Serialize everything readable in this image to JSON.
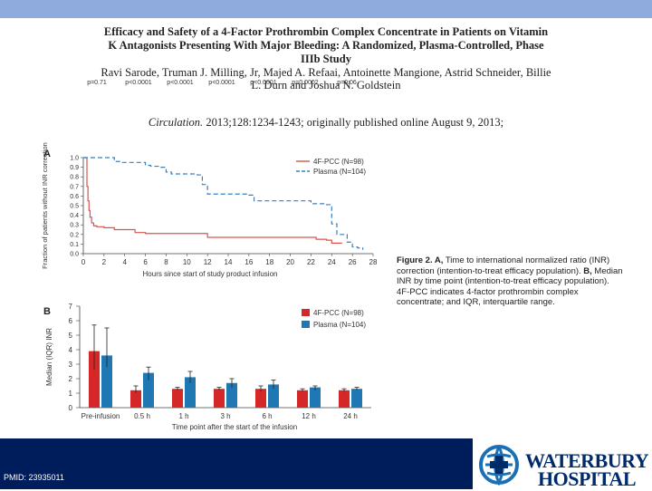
{
  "paper": {
    "title": "Efficacy and Safety of a 4-Factor Prothrombin Complex Concentrate in Patients on Vitamin K Antagonists Presenting With Major Bleeding: A Randomized, Plasma-Controlled, Phase IIIb Study",
    "authors": "Ravi Sarode, Truman J. Milling, Jr, Majed A. Refaai, Antoinette Mangione, Astrid Schneider, Billie L. Durn and Joshua N. Goldstein",
    "journal": "Circulation.",
    "citation_rest": " 2013;128:1234-1243; originally published online August 9, 2013;"
  },
  "caption": {
    "fig": "Figure 2. A,",
    "text": " Time to international normalized ratio (INR) correction (intention-to-treat efficacy population). ",
    "b_label": "B,",
    "text2": " Median INR by time point (intention-to-treat efficacy population). 4F-PCC indicates 4-factor prothrombin complex concentrate; and IQR, interquartile range."
  },
  "footer": {
    "pmid": "PMID: 23935011"
  },
  "logo": {
    "line1": "WATERBURY",
    "line2": "HOSPITAL"
  },
  "colors": {
    "pcc": "#d62728",
    "plasma": "#1f77b4",
    "panelA_pcc": "#d9534f",
    "panelA_plasma": "#3a7fc1"
  },
  "chart_data": [
    {
      "type": "line",
      "panel": "A",
      "ylabel": "Fraction of patients without INR correction",
      "xlabel": "Hours since start of study product infusion",
      "xlim": [
        0,
        28
      ],
      "ylim": [
        0,
        1.0
      ],
      "x_ticks": [
        0,
        2,
        4,
        6,
        8,
        10,
        12,
        14,
        16,
        18,
        20,
        22,
        24,
        26,
        28
      ],
      "y_ticks": [
        "0.0",
        "0.1",
        "0.2",
        "0.3",
        "0.4",
        "0.5",
        "0.6",
        "0.7",
        "0.8",
        "0.9",
        "1.0"
      ],
      "legend_position": "top-right",
      "series": [
        {
          "name": "4F-PCC (N=98)",
          "style": "solid",
          "x": [
            0,
            0.3,
            0.35,
            0.45,
            0.55,
            0.65,
            0.8,
            1.0,
            1.3,
            1.6,
            2.0,
            3.0,
            5.0,
            6.0,
            8.0,
            10.0,
            11.5,
            12.0,
            14.0,
            16.0,
            18.0,
            20.0,
            22.0,
            22.5,
            23.5,
            24.0,
            25.0
          ],
          "y": [
            1.0,
            1.0,
            0.7,
            0.55,
            0.45,
            0.38,
            0.32,
            0.29,
            0.28,
            0.28,
            0.27,
            0.25,
            0.22,
            0.21,
            0.21,
            0.21,
            0.21,
            0.17,
            0.17,
            0.17,
            0.17,
            0.17,
            0.17,
            0.15,
            0.14,
            0.11,
            0.11
          ]
        },
        {
          "name": "Plasma (N=104)",
          "style": "dashed",
          "x": [
            0,
            2.5,
            3.0,
            3.5,
            5.5,
            6.0,
            6.5,
            7.5,
            8.0,
            8.5,
            11.0,
            11.5,
            12.0,
            16.0,
            16.5,
            20.0,
            22.0,
            23.5,
            24.0,
            24.5,
            25.5,
            26.0,
            26.5,
            27.0
          ],
          "y": [
            1.0,
            1.0,
            0.96,
            0.95,
            0.95,
            0.92,
            0.91,
            0.9,
            0.85,
            0.83,
            0.82,
            0.72,
            0.62,
            0.61,
            0.55,
            0.55,
            0.52,
            0.51,
            0.31,
            0.2,
            0.12,
            0.07,
            0.06,
            0.04
          ]
        }
      ]
    },
    {
      "type": "bar",
      "panel": "B",
      "ylabel": "Median (IQR) INR",
      "xlabel": "Time point after the start of the infusion",
      "ylim": [
        0,
        7
      ],
      "y_ticks": [
        "0",
        "1",
        "2",
        "3",
        "4",
        "5",
        "6",
        "7"
      ],
      "categories": [
        "Pre-infusion",
        "0.5 h",
        "1 h",
        "3 h",
        "6 h",
        "12 h",
        "24 h"
      ],
      "legend_position": "top-right",
      "series": [
        {
          "name": "4F-PCC (N=98)",
          "values": [
            3.9,
            1.2,
            1.3,
            1.3,
            1.3,
            1.2,
            1.2
          ],
          "lo": [
            2.6,
            1.0,
            1.2,
            1.2,
            1.1,
            1.1,
            1.1
          ],
          "hi": [
            5.7,
            1.5,
            1.4,
            1.4,
            1.5,
            1.3,
            1.3
          ]
        },
        {
          "name": "Plasma (N=104)",
          "values": [
            3.6,
            2.4,
            2.1,
            1.7,
            1.6,
            1.4,
            1.3
          ],
          "lo": [
            2.8,
            1.9,
            1.7,
            1.4,
            1.3,
            1.2,
            1.2
          ],
          "hi": [
            5.5,
            2.8,
            2.5,
            2.0,
            1.9,
            1.5,
            1.4
          ]
        }
      ],
      "annotations": [
        "p=0.71",
        "p<0.0001",
        "p<0.0001",
        "p<0.0001",
        "p<0.0001",
        "p=0.0002",
        "p=0.06"
      ]
    }
  ]
}
